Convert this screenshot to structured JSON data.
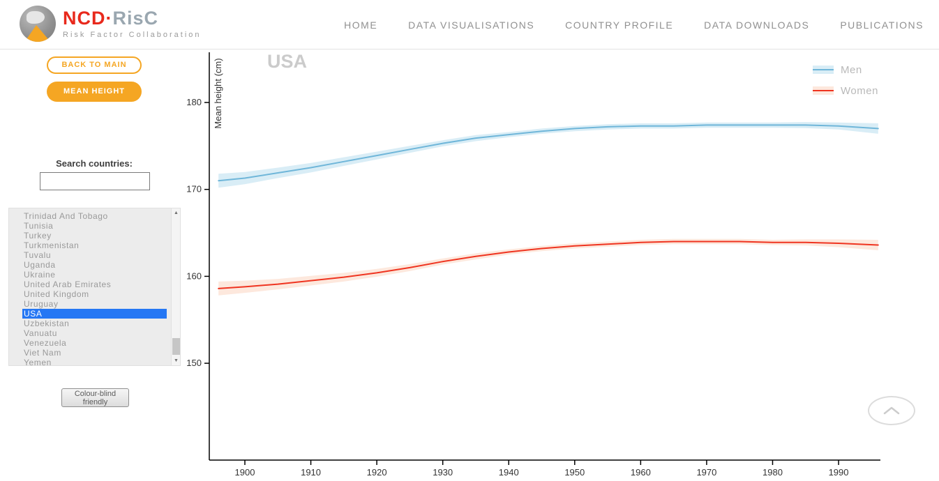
{
  "colors": {
    "accent": "#f5a623",
    "select_blue": "#2577f4",
    "men_line": "#6fb6d9",
    "men_band": "#d9edf6",
    "women_line": "#ef3420",
    "women_band": "#fde8dd"
  },
  "logo": {
    "title_red": "NCD",
    "title_dot": "·",
    "title_gray": "RisC",
    "subtitle": "Risk Factor Collaboration"
  },
  "nav": {
    "items": [
      {
        "label": "HOME"
      },
      {
        "label": "DATA VISUALISATIONS"
      },
      {
        "label": "COUNTRY PROFILE"
      },
      {
        "label": "DATA DOWNLOADS"
      },
      {
        "label": "PUBLICATIONS"
      }
    ]
  },
  "sidebar": {
    "back_button": "BACK TO MAIN",
    "mean_height_button": "MEAN HEIGHT",
    "search_label": "Search countries:",
    "search_value": "",
    "countries": [
      "Trinidad And Tobago",
      "Tunisia",
      "Turkey",
      "Turkmenistan",
      "Tuvalu",
      "Uganda",
      "Ukraine",
      "United Arab Emirates",
      "United Kingdom",
      "Uruguay",
      "USA",
      "Uzbekistan",
      "Vanuatu",
      "Venezuela",
      "Viet Nam",
      "Yemen"
    ],
    "selected_country": "USA",
    "colour_blind_button": "Colour-blind friendly"
  },
  "chart_data": {
    "type": "line",
    "title": "USA",
    "xlabel": "",
    "ylabel": "Mean height (cm)",
    "xlim": [
      1894,
      1997
    ],
    "ylim": [
      139,
      186
    ],
    "xticks": [
      1900,
      1910,
      1920,
      1930,
      1940,
      1950,
      1960,
      1970,
      1980,
      1990
    ],
    "yticks": [
      150,
      160,
      170,
      180
    ],
    "grid": false,
    "legend_position": "top-right",
    "x": [
      1896,
      1900,
      1905,
      1910,
      1915,
      1920,
      1925,
      1930,
      1935,
      1940,
      1945,
      1950,
      1955,
      1960,
      1965,
      1970,
      1975,
      1980,
      1985,
      1990,
      1996
    ],
    "series": [
      {
        "name": "Men",
        "values": [
          171.0,
          171.3,
          171.9,
          172.5,
          173.2,
          173.9,
          174.6,
          175.3,
          175.9,
          176.3,
          176.7,
          177.0,
          177.2,
          177.3,
          177.3,
          177.4,
          177.4,
          177.4,
          177.4,
          177.3,
          177.0
        ],
        "ci_halfwidth": [
          0.8,
          0.7,
          0.6,
          0.55,
          0.5,
          0.45,
          0.4,
          0.35,
          0.35,
          0.3,
          0.3,
          0.3,
          0.3,
          0.3,
          0.3,
          0.3,
          0.3,
          0.3,
          0.35,
          0.4,
          0.6
        ]
      },
      {
        "name": "Women",
        "values": [
          158.6,
          158.8,
          159.1,
          159.5,
          159.9,
          160.4,
          161.0,
          161.7,
          162.3,
          162.8,
          163.2,
          163.5,
          163.7,
          163.9,
          164.0,
          164.0,
          164.0,
          163.9,
          163.9,
          163.8,
          163.6
        ],
        "ci_halfwidth": [
          0.8,
          0.7,
          0.6,
          0.55,
          0.5,
          0.45,
          0.4,
          0.35,
          0.35,
          0.3,
          0.3,
          0.3,
          0.3,
          0.3,
          0.3,
          0.3,
          0.3,
          0.3,
          0.35,
          0.45,
          0.6
        ]
      }
    ]
  }
}
